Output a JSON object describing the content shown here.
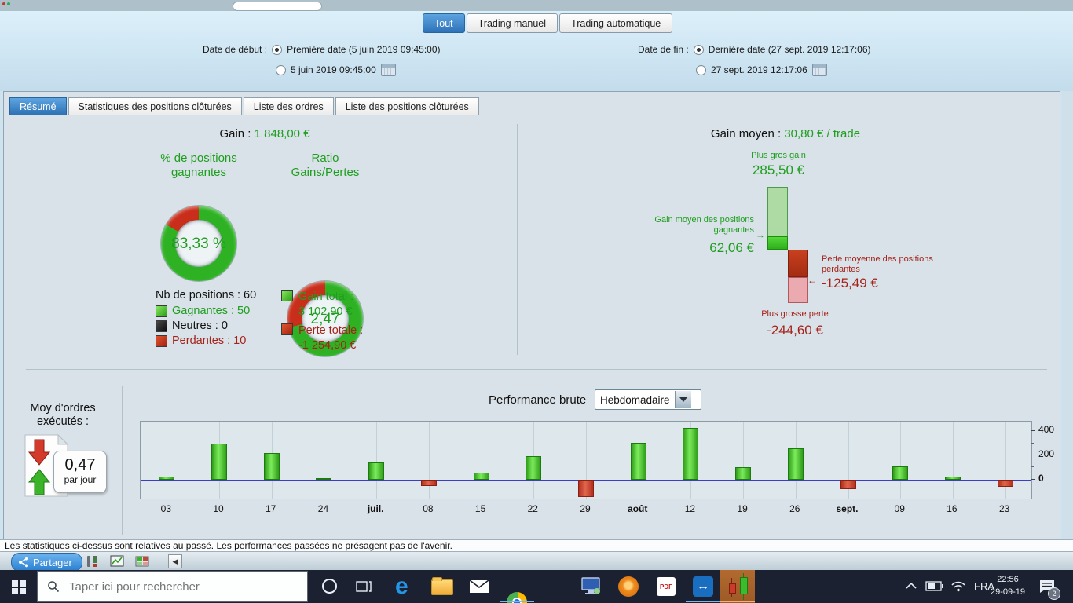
{
  "window": {
    "share_label": "Partager",
    "status_text": "Les statistiques ci-dessus sont relatives au passé. Les performances passées ne présagent pas de l'avenir."
  },
  "filter_tabs": [
    {
      "label": "Tout",
      "selected": true
    },
    {
      "label": "Trading manuel",
      "selected": false
    },
    {
      "label": "Trading automatique",
      "selected": false
    }
  ],
  "date_start": {
    "label": "Date de début :",
    "first_option": "Première date (5 juin 2019 09:45:00)",
    "custom_option": "5 juin 2019 09:45:00"
  },
  "date_end": {
    "label": "Date de fin :",
    "first_option": "Dernière date (27 sept. 2019 12:17:06)",
    "custom_option": "27 sept. 2019 12:17:06"
  },
  "view_tabs": [
    "Résumé",
    "Statistiques des positions clôturées",
    "Liste des ordres",
    "Liste des positions clôturées"
  ],
  "summary": {
    "gain_label": "Gain :",
    "gain_value": "1 848,00 €",
    "winrate_title": "% de positions gagnantes",
    "winrate_value": "83,33 %",
    "ratio_title": "Ratio Gains/Pertes",
    "ratio_value": "2,47",
    "positions_total": "Nb de positions : 60",
    "winners": "Gagnantes : 50",
    "neutral": "Neutres : 0",
    "losers": "Perdantes : 10",
    "gain_total_label": "Gain total :",
    "gain_total_value": "3 102,90 €",
    "loss_total_label": "Perte totale :",
    "loss_total_value": "-1 254,90 €"
  },
  "avg_gain": {
    "title_label": "Gain moyen :",
    "title_value": "30,80 € / trade",
    "max_gain_label": "Plus gros gain",
    "max_gain_value": "285,50 €",
    "avg_win_label": "Gain moyen des positions gagnantes",
    "avg_win_value": "62,06 €",
    "avg_loss_label": "Perte moyenne des positions perdantes",
    "avg_loss_value": "-125,49 €",
    "max_loss_label": "Plus grosse perte",
    "max_loss_value": "-244,60 €"
  },
  "orders_avg": {
    "label": "Moy d'ordres exécutés :",
    "value": "0,47",
    "unit": "par jour"
  },
  "performance": {
    "title": "Performance brute",
    "period": "Hebdomadaire"
  },
  "chart_data": [
    {
      "type": "pie",
      "subtype": "donut",
      "title": "% de positions gagnantes",
      "center_label": "83,33 %",
      "slices": [
        {
          "label": "Gagnantes",
          "value": 83.33,
          "color": "#2eb224"
        },
        {
          "label": "Perdantes",
          "value": 16.67,
          "color": "#c92e1b"
        }
      ]
    },
    {
      "type": "pie",
      "subtype": "donut",
      "title": "Ratio Gains/Pertes",
      "center_label": "2,47",
      "slices": [
        {
          "label": "Gain total",
          "value": 3102.9,
          "color": "#2eb224"
        },
        {
          "label": "Perte totale",
          "value": 1254.9,
          "color": "#c92e1b"
        }
      ]
    },
    {
      "type": "bar",
      "title": "Gain moyen : 30,80 € / trade",
      "orientation": "vertical-stacked",
      "series": [
        {
          "name": "max_gain",
          "value": 285.5
        },
        {
          "name": "avg_gain",
          "value": 62.06
        },
        {
          "name": "avg_loss",
          "value": -125.49
        },
        {
          "name": "max_loss",
          "value": -244.6
        }
      ]
    },
    {
      "type": "bar",
      "title": "Performance brute",
      "period": "Hebdomadaire",
      "categories": [
        "03",
        "10",
        "17",
        "24",
        "juil.",
        "08",
        "15",
        "22",
        "29",
        "août",
        "12",
        "19",
        "26",
        "sept.",
        "09",
        "16",
        "23"
      ],
      "values": [
        25,
        300,
        220,
        10,
        140,
        -55,
        55,
        195,
        -150,
        305,
        425,
        100,
        255,
        -80,
        110,
        25,
        -65
      ],
      "bold_categories": [
        "juil.",
        "août",
        "sept."
      ],
      "ylim": [
        -160,
        480
      ],
      "yticks_labeled": [
        400,
        200,
        0
      ],
      "yticks_minor": [
        300,
        100
      ],
      "xlabel": "",
      "ylabel": "",
      "grid": "vertical",
      "legend_position": "none",
      "zero_line_color": "#3c3ccc",
      "bar_up_color": "#44c128",
      "bar_down_color": "#c43a22"
    }
  ],
  "taskbar": {
    "search_placeholder": "Taper ici pour rechercher",
    "language": "FRA",
    "time": "22:56",
    "date": "29-09-19",
    "notification_count": "2",
    "icons": [
      "start",
      "search",
      "cortana",
      "task-view",
      "edge",
      "file-explorer",
      "mail",
      "chrome",
      "microsoft-store",
      "remote-desktop",
      "settings",
      "pdf-reader",
      "teamviewer",
      "trading-app",
      "tray-chevron",
      "battery",
      "wifi",
      "language",
      "clock",
      "notifications"
    ]
  },
  "colors": {
    "green": "#1e9e1e",
    "red": "#a52219",
    "accent_blue": "#3f84c6",
    "zero_line": "#3c3ccc"
  }
}
